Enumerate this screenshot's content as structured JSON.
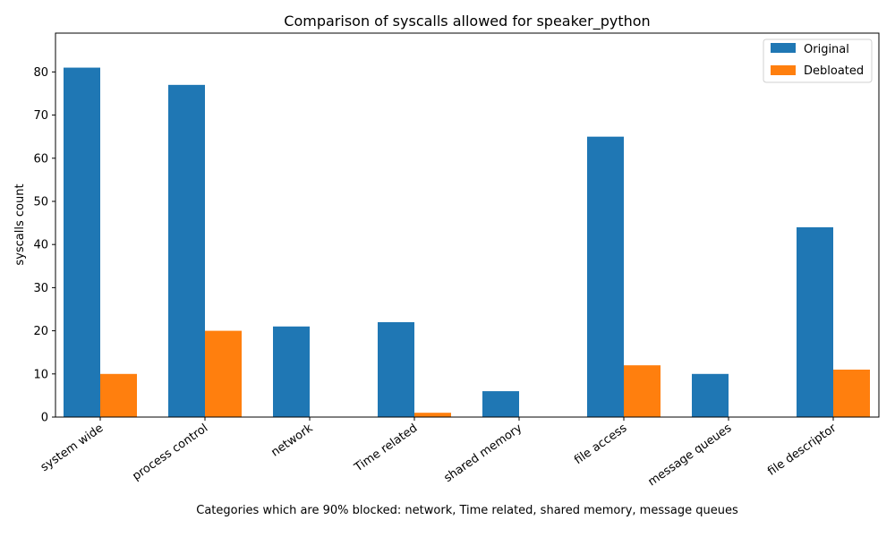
{
  "chart_data": {
    "type": "bar",
    "title": "Comparison of syscalls allowed for speaker_python",
    "xlabel": "Categories which are 90% blocked: network, Time related, shared memory, message queues",
    "ylabel": "syscalls count",
    "categories": [
      "system wide",
      "process control",
      "network",
      "Time related",
      "shared memory",
      "file access",
      "message queues",
      "file descriptor"
    ],
    "series": [
      {
        "name": "Original",
        "color": "#1f77b4",
        "values": [
          81,
          77,
          21,
          22,
          6,
          65,
          10,
          44
        ]
      },
      {
        "name": "Debloated",
        "color": "#ff7f0e",
        "values": [
          10,
          20,
          0,
          1,
          0,
          12,
          0,
          11
        ]
      }
    ],
    "ylim": [
      0,
      89
    ],
    "yticks": [
      0,
      10,
      20,
      30,
      40,
      50,
      60,
      70,
      80
    ],
    "grid": false,
    "legend_position": "top-right"
  }
}
